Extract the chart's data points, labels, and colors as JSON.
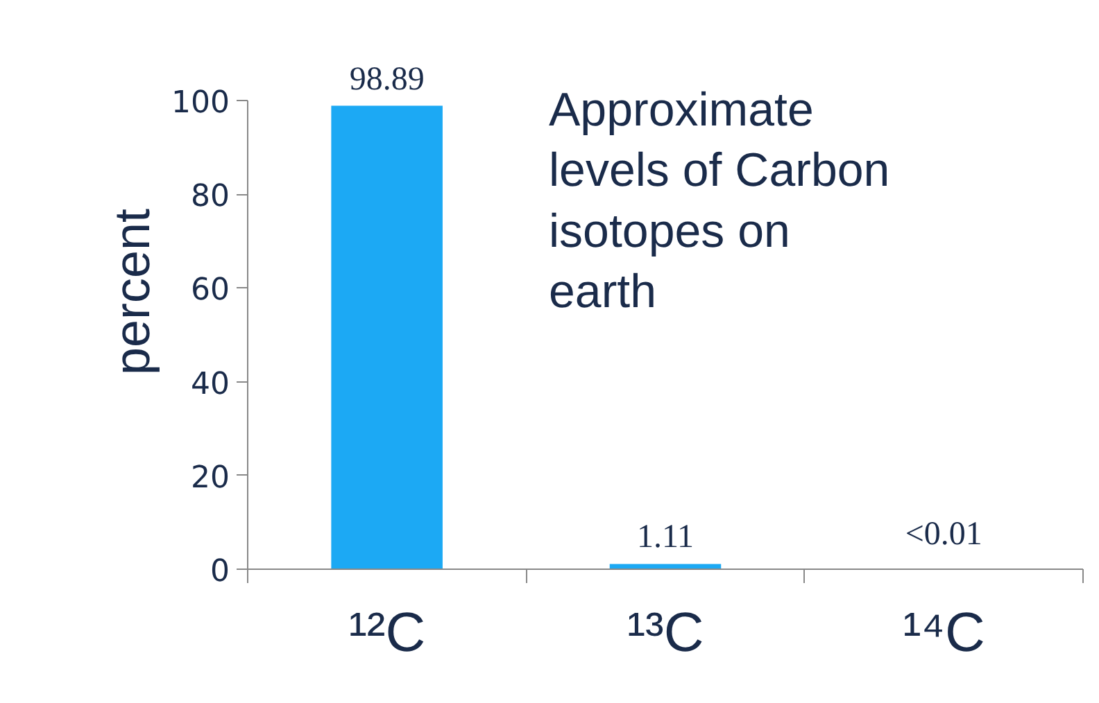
{
  "chart_data": {
    "type": "bar",
    "title": "Approximate levels of Carbon isotopes on earth",
    "ylabel": "percent",
    "categories": [
      "¹²C",
      "¹³C",
      "¹⁴C"
    ],
    "values": [
      98.89,
      1.11,
      0.01
    ],
    "value_labels": [
      "98.89",
      "1.11",
      "<0.01"
    ],
    "color": "#1ca9f4",
    "ylim": [
      0,
      100
    ],
    "yticks": [
      0,
      20,
      40,
      60,
      80,
      100
    ],
    "grid": false
  }
}
